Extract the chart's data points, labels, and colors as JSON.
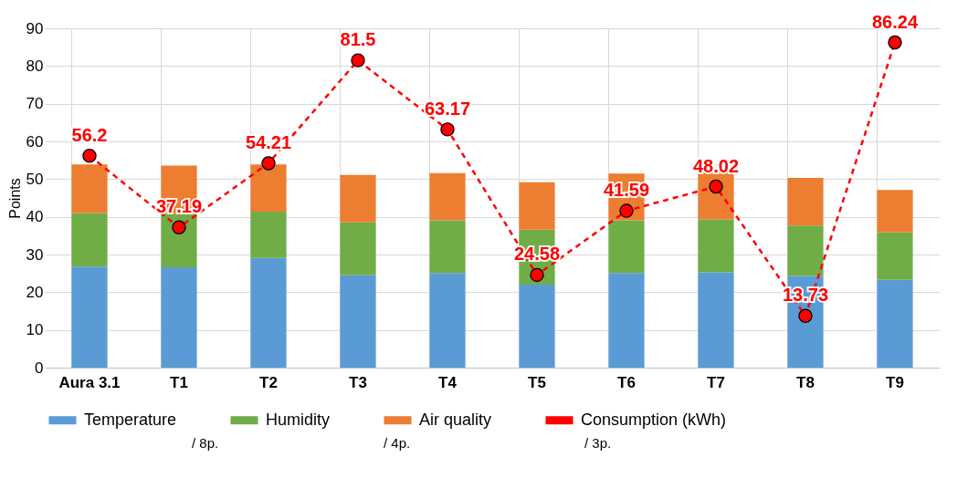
{
  "chart_data": {
    "type": "bar",
    "stacked": true,
    "ylabel": "Points",
    "categories": [
      "Aura 3.1",
      "T1",
      "T2",
      "T3",
      "T4",
      "T5",
      "T6",
      "T7",
      "T8",
      "T9"
    ],
    "series": [
      {
        "name": "Temperature",
        "color": "#5b9bd5",
        "values": [
          26.8,
          26.6,
          29.1,
          24.5,
          25.1,
          22.0,
          25.1,
          25.3,
          24.3,
          23.3
        ]
      },
      {
        "name": "Humidity",
        "color": "#70ad47",
        "values": [
          14.2,
          14.2,
          12.3,
          14.0,
          14.0,
          14.6,
          14.0,
          14.0,
          13.4,
          12.6
        ]
      },
      {
        "name": "Air quality",
        "color": "#ed7d31",
        "values": [
          12.9,
          12.8,
          12.5,
          12.6,
          12.5,
          12.6,
          12.4,
          12.6,
          12.6,
          11.2
        ]
      },
      {
        "name": "Consumption (kWh)",
        "type": "line",
        "color": "#ff0000",
        "marker": "circle",
        "line_style": "dashed",
        "values": [
          56.2,
          37.19,
          54.21,
          81.5,
          63.17,
          24.58,
          41.59,
          48.02,
          13.73,
          86.24
        ],
        "value_labels": [
          "56.2",
          "37.19",
          "54.21",
          "81.5",
          "63.17",
          "24.58",
          "41.59",
          "48.02",
          "13.73",
          "86.24"
        ]
      }
    ],
    "ylim": [
      0,
      90
    ],
    "yticks": [
      0,
      10,
      20,
      30,
      40,
      50,
      60,
      70,
      80,
      90
    ],
    "grid": true,
    "legend": "bottom",
    "annotations": [
      "/ 8p.",
      "/ 4p.",
      "/ 3p."
    ]
  }
}
